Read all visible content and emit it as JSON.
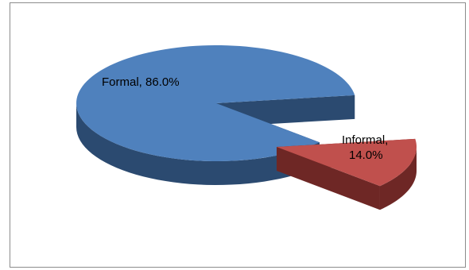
{
  "chart_data": {
    "type": "pie",
    "style": "3d-exploded",
    "slices": [
      {
        "name": "Formal",
        "value": 86.0,
        "label": "Formal, 86.0%",
        "label_line1": "Formal, 86.0%",
        "label_line2": "",
        "color": "#4f81bd",
        "side_color": "#2b4a70"
      },
      {
        "name": "Informal",
        "value": 14.0,
        "label": "Informal, 14.0%",
        "label_line1": "Informal,",
        "label_line2": "14.0%",
        "color": "#c0504d",
        "side_color": "#6e2725"
      }
    ],
    "legend": false,
    "grid": false
  }
}
